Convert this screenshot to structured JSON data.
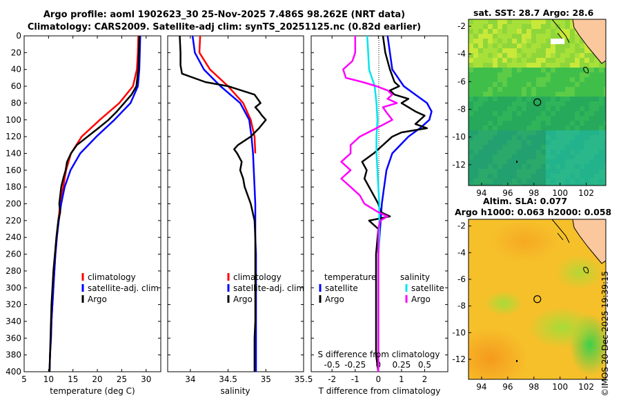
{
  "titles": {
    "line1": "Argo profile: aoml 1902623_30 25-Nov-2025 7.486S 98.262E (NRT data)",
    "line2": "Climatology: CARS2009. Satellite-adj clim: synTS_20251125.nc (0.82d earlier)",
    "sst": "sat. SST: 28.7 Argo: 28.6",
    "sla_line1": "Altim. SLA: 0.077",
    "sla_line2": "Argo h1000: 0.063 h2000: 0.058",
    "timestamp": "©IMOS 20-Dec-2025 19:39:15"
  },
  "colors": {
    "climatology": "#ff0000",
    "satellite": "#0000ff",
    "argo": "#000000",
    "sal_satellite": "#00e5ee",
    "sal_argo": "#ff00ff"
  },
  "chart_data": [
    {
      "type": "line",
      "id": "temperature",
      "xlabel": "temperature (deg C)",
      "xlim": [
        5,
        33
      ],
      "ylim": [
        400,
        0
      ],
      "x_ticks": [
        5,
        10,
        15,
        20,
        25,
        30
      ],
      "y_ticks": [
        0,
        20,
        40,
        60,
        80,
        100,
        120,
        140,
        160,
        180,
        200,
        220,
        240,
        260,
        280,
        300,
        320,
        340,
        360,
        380,
        400
      ],
      "legend": [
        "climatology",
        "satellite-adj. clim",
        "Argo"
      ],
      "series": [
        {
          "name": "climatology",
          "color": "#ff0000",
          "depth": [
            0,
            20,
            40,
            60,
            80,
            100,
            120,
            140,
            160,
            180,
            200,
            220,
            240,
            260,
            280,
            300,
            320,
            340,
            360,
            380,
            400
          ],
          "values": [
            28.4,
            28.3,
            28.1,
            27.3,
            24.5,
            20.5,
            16.8,
            14.6,
            13.6,
            13.0,
            12.4,
            12.0,
            11.7,
            11.4,
            11.2,
            11.0,
            10.8,
            10.6,
            10.5,
            10.3,
            10.2
          ]
        },
        {
          "name": "satellite-adj. clim",
          "color": "#0000ff",
          "depth": [
            0,
            20,
            40,
            60,
            80,
            100,
            120,
            140,
            160,
            180,
            200,
            220,
            240,
            260,
            280,
            300,
            320,
            340,
            360,
            380,
            400
          ],
          "values": [
            28.8,
            28.7,
            28.6,
            28.3,
            26.8,
            23.5,
            19.8,
            16.5,
            14.5,
            13.3,
            12.6,
            12.1,
            11.7,
            11.4,
            11.2,
            11.0,
            10.8,
            10.6,
            10.5,
            10.3,
            10.2
          ]
        },
        {
          "name": "Argo",
          "color": "#000000",
          "depth": [
            0,
            20,
            40,
            60,
            70,
            80,
            90,
            100,
            110,
            120,
            130,
            140,
            150,
            160,
            170,
            180,
            190,
            200,
            210,
            220,
            240,
            260,
            280,
            300,
            320,
            340,
            360,
            380,
            400
          ],
          "values": [
            28.6,
            28.5,
            28.4,
            28.0,
            27.0,
            25.5,
            24.0,
            22.3,
            20.2,
            18.0,
            15.8,
            14.6,
            13.8,
            13.5,
            13.0,
            12.6,
            12.4,
            12.2,
            12.4,
            12.0,
            11.6,
            11.3,
            11.0,
            10.8,
            10.6,
            10.5,
            10.4,
            10.3,
            10.2
          ]
        }
      ]
    },
    {
      "type": "line",
      "id": "salinity",
      "xlabel": "salinity",
      "xlim": [
        33.7,
        35.5
      ],
      "ylim": [
        400,
        0
      ],
      "x_ticks": [
        34,
        34.5,
        35,
        35.5
      ],
      "legend": [
        "climatology",
        "satellite-adj. clim",
        "Argo"
      ],
      "series": [
        {
          "name": "climatology",
          "color": "#ff0000",
          "depth": [
            0,
            20,
            40,
            60,
            80,
            100,
            120,
            140
          ],
          "values": [
            34.13,
            34.12,
            34.26,
            34.5,
            34.7,
            34.8,
            34.85,
            34.86
          ]
        },
        {
          "name": "satellite-adj. clim",
          "color": "#0000ff",
          "depth": [
            0,
            20,
            40,
            60,
            80,
            100,
            120,
            140,
            160,
            180,
            200,
            220,
            240,
            260,
            280,
            300,
            320,
            340,
            360,
            380,
            400
          ],
          "values": [
            34.03,
            34.06,
            34.18,
            34.4,
            34.66,
            34.78,
            34.81,
            34.83,
            34.84,
            34.85,
            34.86,
            34.86,
            34.86,
            34.87,
            34.87,
            34.87,
            34.87,
            34.87,
            34.87,
            34.87,
            34.87
          ]
        },
        {
          "name": "Argo",
          "color": "#000000",
          "depth": [
            0,
            20,
            35,
            45,
            55,
            60,
            70,
            80,
            85,
            90,
            95,
            100,
            110,
            120,
            130,
            135,
            140,
            150,
            160,
            170,
            180,
            200,
            220,
            240,
            260,
            280,
            300,
            320,
            340,
            360,
            380,
            400
          ],
          "values": [
            33.86,
            33.87,
            33.87,
            33.89,
            34.2,
            34.5,
            34.85,
            34.93,
            34.86,
            34.91,
            34.95,
            35.0,
            34.91,
            34.8,
            34.63,
            34.58,
            34.62,
            34.68,
            34.66,
            34.7,
            34.72,
            34.8,
            34.85,
            34.86,
            34.86,
            34.86,
            34.86,
            34.86,
            34.86,
            34.85,
            34.85,
            34.85
          ]
        }
      ]
    },
    {
      "type": "line",
      "id": "differences",
      "xlabel": "T difference from climatology",
      "xlabel_top": "S difference from climatology",
      "xlim": [
        -2.9,
        3.0
      ],
      "ylim": [
        400,
        0
      ],
      "x_ticks": [
        -2,
        -1,
        0,
        1,
        2
      ],
      "x_ticks_top_labels": [
        "-0.5",
        "-0.25",
        "0",
        "0.25",
        "0.5"
      ],
      "legend": {
        "temperature_header": "temperature",
        "salinity_header": "salinity",
        "entries": [
          "satellite",
          "Argo",
          "satellite",
          "Argo"
        ]
      },
      "series": [
        {
          "name": "T satellite",
          "color": "#0000ff",
          "depth": [
            0,
            20,
            40,
            60,
            70,
            80,
            90,
            100,
            110,
            120,
            140,
            160,
            180,
            200,
            220,
            240,
            260,
            300,
            350,
            400
          ],
          "values": [
            0.4,
            0.5,
            0.6,
            1.1,
            1.6,
            2.1,
            2.3,
            2.2,
            1.8,
            1.3,
            0.6,
            0.35,
            0.25,
            0.15,
            0.1,
            0.05,
            0.0,
            0.0,
            0.0,
            0.0
          ]
        },
        {
          "name": "T Argo",
          "color": "#000000",
          "depth": [
            0,
            20,
            40,
            55,
            60,
            65,
            70,
            75,
            80,
            90,
            95,
            100,
            105,
            110,
            115,
            120,
            130,
            140,
            150,
            160,
            170,
            180,
            190,
            200,
            210,
            215,
            220,
            230,
            260,
            300,
            340,
            380,
            400
          ],
          "values": [
            0.2,
            0.3,
            0.5,
            0.7,
            0.9,
            0.5,
            0.7,
            1.3,
            1.0,
            1.6,
            2.0,
            1.8,
            1.6,
            2.1,
            1.0,
            0.6,
            0.2,
            -0.2,
            -0.7,
            -0.5,
            -0.6,
            -0.4,
            -0.2,
            0.0,
            0.1,
            0.5,
            -0.4,
            0.0,
            -0.1,
            -0.1,
            -0.1,
            -0.1,
            0.0
          ]
        },
        {
          "name": "S satellite",
          "color": "#00e5ee",
          "depth": [
            0,
            20,
            40,
            60,
            80,
            100,
            120,
            140,
            160,
            180,
            200,
            220,
            240,
            260,
            300,
            350,
            400
          ],
          "values": [
            -0.12,
            -0.11,
            -0.1,
            -0.04,
            -0.02,
            -0.01,
            -0.02,
            -0.02,
            -0.01,
            0.0,
            0.01,
            0.01,
            0.01,
            0.0,
            0.0,
            0.0,
            0.0
          ]
        },
        {
          "name": "S Argo",
          "color": "#ff00ff",
          "depth": [
            0,
            20,
            30,
            40,
            50,
            55,
            60,
            65,
            70,
            75,
            80,
            85,
            90,
            100,
            110,
            120,
            130,
            140,
            150,
            160,
            170,
            180,
            190,
            200,
            210,
            215,
            220,
            230,
            260,
            300,
            340,
            380,
            400
          ],
          "values": [
            -0.25,
            -0.25,
            -0.28,
            -0.38,
            -0.35,
            -0.17,
            -0.02,
            0.1,
            0.15,
            0.1,
            0.2,
            0.05,
            0.08,
            0.15,
            -0.02,
            -0.2,
            -0.3,
            -0.3,
            -0.4,
            -0.3,
            -0.4,
            -0.3,
            -0.2,
            -0.15,
            0.0,
            0.1,
            0.02,
            0.0,
            0.0,
            0.0,
            0.0,
            0.0,
            0.0
          ]
        }
      ]
    },
    {
      "type": "heatmap",
      "id": "sst-map",
      "title": "sat. SST: 28.7 Argo: 28.6",
      "x_ticks": [
        94,
        96,
        98,
        100,
        102
      ],
      "y_ticks": [
        -2,
        -4,
        -6,
        -8,
        -10,
        -12
      ],
      "xlim": [
        93,
        103.5
      ],
      "ylim": [
        -13.5,
        -1.5
      ],
      "argo_position": {
        "lon": 98.262,
        "lat": -7.486
      }
    },
    {
      "type": "heatmap",
      "id": "sla-map",
      "title": "Altim. SLA: 0.077",
      "subtitle": "Argo h1000: 0.063 h2000: 0.058",
      "x_ticks": [
        94,
        96,
        98,
        100,
        102
      ],
      "y_ticks": [
        -2,
        -4,
        -6,
        -8,
        -10,
        -12
      ],
      "xlim": [
        93,
        103.5
      ],
      "ylim": [
        -13.5,
        -1.5
      ],
      "argo_position": {
        "lon": 98.262,
        "lat": -7.486
      }
    }
  ]
}
